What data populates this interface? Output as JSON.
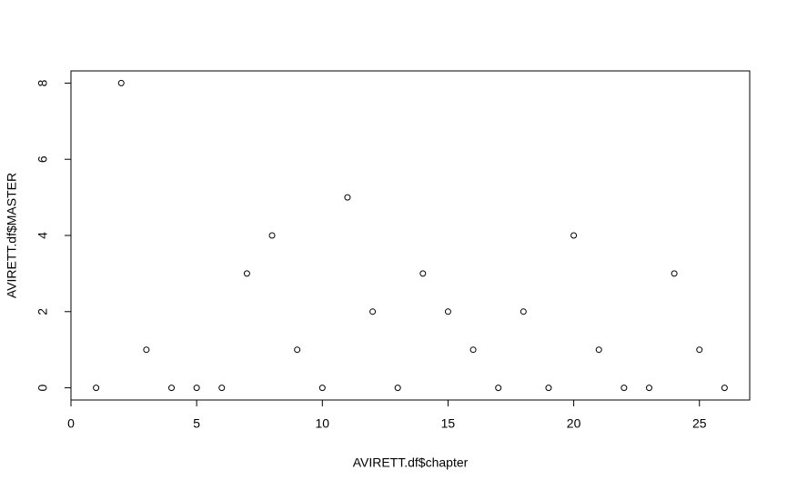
{
  "chart_data": {
    "type": "scatter",
    "x_label": "AVIRETT.df$chapter",
    "y_label": "AVIRETT.df$MASTER",
    "x": [
      1,
      2,
      3,
      4,
      5,
      6,
      7,
      8,
      9,
      10,
      11,
      12,
      13,
      14,
      15,
      16,
      17,
      18,
      19,
      20,
      21,
      22,
      23,
      24,
      25,
      26
    ],
    "values": [
      0,
      8,
      1,
      0,
      0,
      0,
      3,
      4,
      1,
      0,
      5,
      2,
      0,
      3,
      2,
      1,
      0,
      2,
      0,
      4,
      1,
      0,
      0,
      3,
      1,
      0
    ],
    "color": "#000000",
    "xlim": [
      0,
      27
    ],
    "xticks": [
      0,
      5,
      10,
      15,
      20,
      25
    ],
    "ylim": [
      -0.32,
      8.32
    ],
    "yticks": [
      0,
      2,
      4,
      6,
      8
    ],
    "grid": false
  }
}
